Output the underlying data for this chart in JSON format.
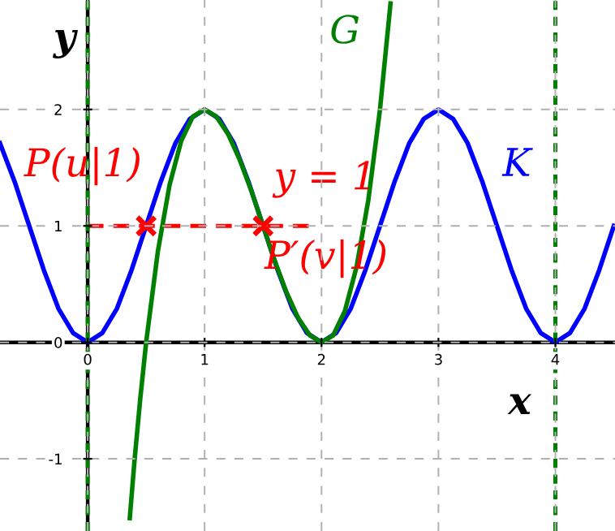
{
  "chart_data": {
    "type": "line",
    "xlabel": "x",
    "ylabel": "y",
    "xlim": [
      -0.75,
      4.51
    ],
    "ylim": [
      -1.62,
      2.94
    ],
    "xticks": [
      0,
      1,
      2,
      3,
      4
    ],
    "yticks": [
      -1,
      0,
      1,
      2
    ],
    "grid": true,
    "legend": false,
    "marker": "none",
    "line_style": "solid",
    "series": [
      {
        "name": "K",
        "color": "#0000ff",
        "x": [
          -0.75,
          -0.625,
          -0.5,
          -0.375,
          -0.25,
          -0.125,
          0,
          0.125,
          0.25,
          0.375,
          0.5,
          0.625,
          0.75,
          0.875,
          1,
          1.125,
          1.25,
          1.375,
          1.5,
          1.625,
          1.75,
          1.875,
          2,
          2.125,
          2.25,
          2.375,
          2.5,
          2.625,
          2.75,
          2.875,
          3,
          3.125,
          3.25,
          3.375,
          3.5,
          3.625,
          3.75,
          3.875,
          4,
          4.125,
          4.25,
          4.375,
          4.5
        ],
        "values": [
          1.71,
          1.38,
          1,
          0.62,
          0.29,
          0.08,
          0,
          0.08,
          0.29,
          0.62,
          1,
          1.38,
          1.71,
          1.92,
          2,
          1.92,
          1.71,
          1.38,
          1,
          0.62,
          0.29,
          0.08,
          0,
          0.08,
          0.29,
          0.62,
          1,
          1.38,
          1.71,
          1.92,
          2,
          1.92,
          1.71,
          1.38,
          1,
          0.62,
          0.29,
          0.08,
          0,
          0.08,
          0.29,
          0.62,
          1
        ]
      },
      {
        "name": "G",
        "color": "#008000",
        "x": [
          0.36,
          0.4,
          0.45,
          0.5,
          0.6,
          0.7,
          0.8,
          0.9,
          1,
          1.1,
          1.2,
          1.3,
          1.4,
          1.5,
          1.6,
          1.7,
          1.8,
          1.9,
          2,
          2.1,
          2.2,
          2.3,
          2.4,
          2.5,
          2.59
        ],
        "values": [
          -1.51,
          -1.02,
          -0.48,
          0,
          0.78,
          1.35,
          1.73,
          1.94,
          2,
          1.94,
          1.79,
          1.57,
          1.3,
          1,
          0.7,
          0.43,
          0.21,
          0.06,
          0,
          0.06,
          0.27,
          0.65,
          1.22,
          2,
          2.91
        ]
      },
      {
        "name": "y = 1",
        "color": "#ff0000",
        "line_style": "dashed",
        "x": [
          0,
          1.89
        ],
        "values": [
          1,
          1
        ]
      },
      {
        "type": "scatter",
        "color": "#ff0000",
        "marker": "cross",
        "x": [
          0.5,
          1.5
        ],
        "values": [
          1,
          1
        ]
      }
    ],
    "ref_lines": [
      {
        "axis": "x",
        "value": 0,
        "color": "#008000",
        "line_style": "dashed"
      },
      {
        "axis": "x",
        "value": 4,
        "color": "#008000",
        "line_style": "dashed"
      }
    ],
    "annotations": [
      {
        "text": "P(u|1)",
        "x": 0.5,
        "y": 1
      },
      {
        "text": "P′(v|1)",
        "x": 1.5,
        "y": 1
      }
    ]
  }
}
